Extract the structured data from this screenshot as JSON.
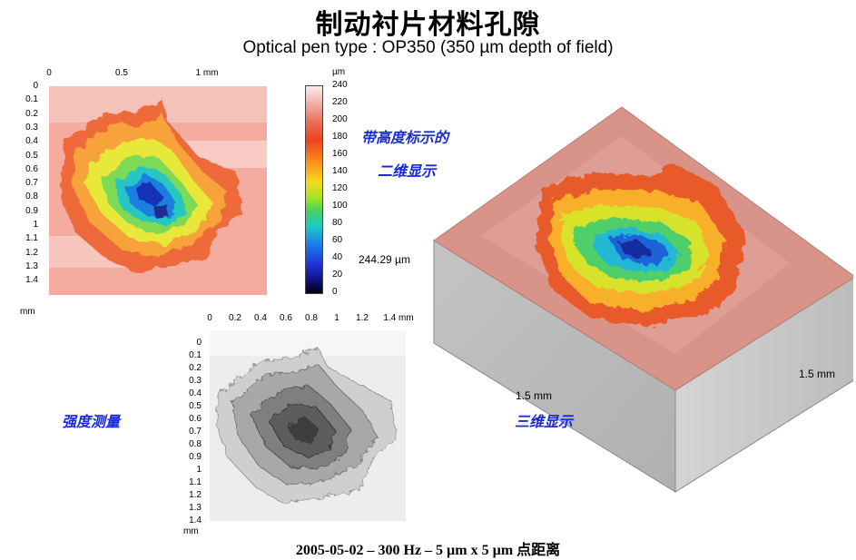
{
  "title": "制动衬片材料孔隙",
  "subtitle": "Optical pen type : OP350 (350 µm depth of field)",
  "map2d": {
    "x_ticks": [
      "0",
      "0.5",
      "1 mm"
    ],
    "y_ticks": [
      "0",
      "0.1",
      "0.2",
      "0.3",
      "0.4",
      "0.5",
      "0.6",
      "0.7",
      "0.8",
      "0.9",
      "1",
      "1.1",
      "1.2",
      "1.3",
      "1.4"
    ],
    "unit": "mm"
  },
  "colorbar": {
    "unit": "µm",
    "ticks": [
      "240",
      "220",
      "200",
      "180",
      "160",
      "140",
      "120",
      "100",
      "80",
      "60",
      "40",
      "20",
      "0"
    ]
  },
  "label_2d_line1": "带高度标示的",
  "label_2d_line2": "二维显示",
  "depth_value": "244.29 µm",
  "intensity": {
    "x_ticks": [
      "0",
      "0.2",
      "0.4",
      "0.6",
      "0.8",
      "1",
      "1.2",
      "1.4 mm"
    ],
    "y_ticks": [
      "0",
      "0.1",
      "0.2",
      "0.3",
      "0.4",
      "0.5",
      "0.6",
      "0.7",
      "0.8",
      "0.9",
      "1",
      "1.1",
      "1.2",
      "1.3",
      "1.4"
    ],
    "unit": "mm"
  },
  "label_intensity": "强度测量",
  "label_3d": "三维显示",
  "view3d": {
    "x_label": "1.5 mm",
    "y_label": "1.5 mm"
  },
  "footer": "2005-05-02 – 300 Hz – 5 µm x 5 µm 点距离"
}
